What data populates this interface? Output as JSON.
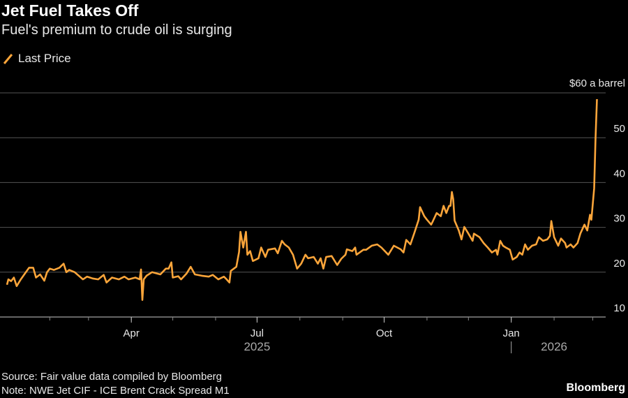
{
  "header": {
    "title": "Jet Fuel Takes Off",
    "subtitle": "Fuel's premium to crude oil is surging"
  },
  "legend": {
    "label": "Last Price",
    "color": "#fba53a"
  },
  "footer": {
    "source": "Source: Fair value data compiled by Bloomberg",
    "note": "Note: NWE Jet CIF - ICE Brent Crack Spread M1",
    "brand": "Bloomberg"
  },
  "chart_data": {
    "type": "line",
    "title": "Jet Fuel Takes Off",
    "subtitle": "Fuel's premium to crude oil is surging",
    "xlabel": "",
    "ylabel": "",
    "x_unit": "days since 2025-01-01",
    "ylim": [
      10,
      60
    ],
    "yticks": [
      10,
      20,
      30,
      40,
      50,
      60
    ],
    "ytick_labels": [
      "10",
      "20",
      "30",
      "40",
      "50",
      "$60 a barrel"
    ],
    "xticks_minor": [
      31,
      59,
      90,
      120,
      151,
      181,
      212,
      243,
      273,
      304,
      334,
      365,
      396,
      424
    ],
    "xticks": [
      {
        "day": 90,
        "label": "Apr"
      },
      {
        "day": 181,
        "label": "Jul"
      },
      {
        "day": 273,
        "label": "Oct"
      },
      {
        "day": 365,
        "label": "Jan"
      }
    ],
    "year_labels": [
      {
        "day": 181,
        "label": "2025"
      },
      {
        "day": 396,
        "label": "2026"
      }
    ],
    "year_divider_day": 365,
    "grid": true,
    "legend_position": "top-left",
    "series": [
      {
        "name": "Last Price",
        "color": "#fba53a",
        "points": [
          [
            0,
            17.2
          ],
          [
            1,
            18.4
          ],
          [
            3,
            18
          ],
          [
            5,
            18.8
          ],
          [
            7,
            16.9
          ],
          [
            10,
            18.4
          ],
          [
            13,
            19.7
          ],
          [
            16,
            21
          ],
          [
            19,
            21
          ],
          [
            21,
            18.8
          ],
          [
            24,
            19.5
          ],
          [
            27,
            18.1
          ],
          [
            29,
            20
          ],
          [
            31,
            20.8
          ],
          [
            34,
            20.5
          ],
          [
            38,
            21
          ],
          [
            41,
            21.9
          ],
          [
            43,
            20
          ],
          [
            45,
            20.5
          ],
          [
            49,
            20
          ],
          [
            55,
            18.4
          ],
          [
            58,
            19
          ],
          [
            62,
            18.6
          ],
          [
            66,
            18.4
          ],
          [
            70,
            19.4
          ],
          [
            72,
            17.7
          ],
          [
            76,
            18.8
          ],
          [
            81,
            18.4
          ],
          [
            85,
            19
          ],
          [
            88,
            18.4
          ],
          [
            93,
            18.8
          ],
          [
            96,
            18.4
          ],
          [
            97,
            20.6
          ],
          [
            98,
            13.8
          ],
          [
            99,
            18.4
          ],
          [
            101,
            19.2
          ],
          [
            105,
            20
          ],
          [
            111,
            19.5
          ],
          [
            115,
            20.8
          ],
          [
            117,
            20.8
          ],
          [
            119,
            22.2
          ],
          [
            120,
            18.8
          ],
          [
            124,
            19.1
          ],
          [
            126,
            18.4
          ],
          [
            130,
            19.7
          ],
          [
            133,
            21.2
          ],
          [
            136,
            19.5
          ],
          [
            141,
            19.2
          ],
          [
            146,
            19
          ],
          [
            149,
            19.4
          ],
          [
            153,
            18.4
          ],
          [
            157,
            19
          ],
          [
            159,
            18.4
          ],
          [
            161,
            17.7
          ],
          [
            162,
            20.3
          ],
          [
            166,
            21.2
          ],
          [
            168,
            24.5
          ],
          [
            169,
            29
          ],
          [
            171,
            25.5
          ],
          [
            173,
            29
          ],
          [
            174,
            23.9
          ],
          [
            176,
            24.7
          ],
          [
            178,
            22.5
          ],
          [
            182,
            23.1
          ],
          [
            184,
            25.5
          ],
          [
            187,
            23.4
          ],
          [
            189,
            25
          ],
          [
            194,
            25.3
          ],
          [
            196,
            24.2
          ],
          [
            199,
            27
          ],
          [
            201,
            26.2
          ],
          [
            204,
            25.5
          ],
          [
            207,
            23.9
          ],
          [
            210,
            20.8
          ],
          [
            213,
            21.9
          ],
          [
            216,
            23.9
          ],
          [
            218,
            23.1
          ],
          [
            222,
            23.4
          ],
          [
            225,
            21.9
          ],
          [
            227,
            23.1
          ],
          [
            229,
            20.8
          ],
          [
            231,
            23.4
          ],
          [
            235,
            23.6
          ],
          [
            239,
            21.6
          ],
          [
            242,
            23
          ],
          [
            245,
            23.9
          ],
          [
            246,
            25.1
          ],
          [
            250,
            24.7
          ],
          [
            252,
            25.5
          ],
          [
            253,
            23.9
          ],
          [
            258,
            25
          ],
          [
            260,
            25
          ],
          [
            264,
            25.9
          ],
          [
            268,
            26.2
          ],
          [
            271,
            25.5
          ],
          [
            276,
            23.9
          ],
          [
            280,
            25.9
          ],
          [
            285,
            25.1
          ],
          [
            287,
            24.4
          ],
          [
            289,
            27.2
          ],
          [
            292,
            26.2
          ],
          [
            295,
            28.9
          ],
          [
            298,
            31.7
          ],
          [
            299,
            34.5
          ],
          [
            302,
            32.5
          ],
          [
            304,
            31.7
          ],
          [
            307,
            30.6
          ],
          [
            308,
            31.2
          ],
          [
            311,
            33.2
          ],
          [
            314,
            32.5
          ],
          [
            316,
            34.8
          ],
          [
            318,
            33.2
          ],
          [
            320,
            34.8
          ],
          [
            321,
            34.8
          ],
          [
            322,
            37.9
          ],
          [
            323,
            36.3
          ],
          [
            324,
            31.5
          ],
          [
            327,
            29.3
          ],
          [
            329,
            27.3
          ],
          [
            331,
            30.1
          ],
          [
            334,
            28.6
          ],
          [
            337,
            27
          ],
          [
            338,
            28.6
          ],
          [
            342,
            27.8
          ],
          [
            345,
            26.5
          ],
          [
            348,
            25.5
          ],
          [
            351,
            24.4
          ],
          [
            354,
            25
          ],
          [
            355,
            23.9
          ],
          [
            357,
            27
          ],
          [
            359,
            25.9
          ],
          [
            361,
            25.5
          ],
          [
            364,
            25
          ],
          [
            366,
            22.8
          ],
          [
            369,
            23.4
          ],
          [
            371,
            24.4
          ],
          [
            373,
            23.9
          ],
          [
            375,
            26.2
          ],
          [
            377,
            25
          ],
          [
            380,
            25.9
          ],
          [
            383,
            26.2
          ],
          [
            385,
            27.8
          ],
          [
            388,
            27
          ],
          [
            391,
            27.3
          ],
          [
            393,
            28.1
          ],
          [
            394,
            31.4
          ],
          [
            396,
            27.8
          ],
          [
            399,
            25.9
          ],
          [
            401,
            27.5
          ],
          [
            404,
            26.5
          ],
          [
            405,
            25.5
          ],
          [
            408,
            26.2
          ],
          [
            410,
            25.5
          ],
          [
            413,
            26.5
          ],
          [
            415,
            28.6
          ],
          [
            418,
            30.6
          ],
          [
            420,
            29.3
          ],
          [
            422,
            32.8
          ],
          [
            423,
            31.7
          ],
          [
            425,
            38.7
          ],
          [
            426,
            50
          ],
          [
            427,
            58.6
          ]
        ]
      }
    ]
  }
}
